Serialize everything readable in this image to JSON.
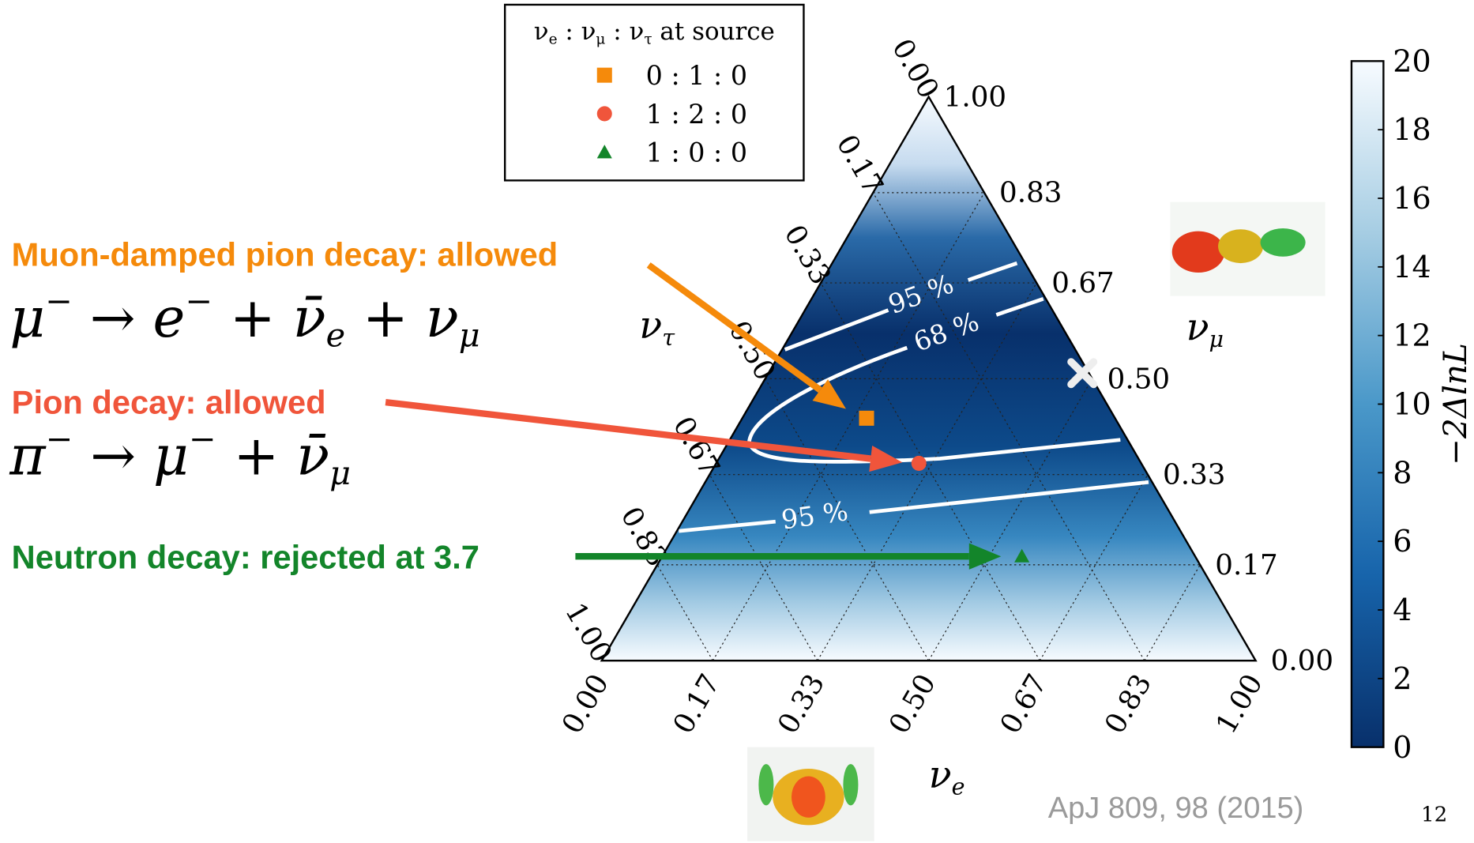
{
  "chart_data": {
    "type": "ternary",
    "axes": {
      "bottom": {
        "label": [
          {
            "text": "ν",
            "sub": "e"
          }
        ],
        "ticks": [
          {
            "value": 0,
            "label": "0.00"
          },
          {
            "value": 0.17,
            "label": "0.17"
          },
          {
            "value": 0.33,
            "label": "0.33"
          },
          {
            "value": 0.5,
            "label": "0.50"
          },
          {
            "value": 0.67,
            "label": "0.67"
          },
          {
            "value": 0.83,
            "label": "0.83"
          },
          {
            "value": 1,
            "label": "1.00"
          }
        ]
      },
      "right": {
        "label": [
          {
            "text": "ν",
            "sub": "μ"
          }
        ],
        "ticks": [
          {
            "value": 0,
            "label": "0.00"
          },
          {
            "value": 0.17,
            "label": "0.17"
          },
          {
            "value": 0.33,
            "label": "0.33"
          },
          {
            "value": 0.5,
            "label": "0.50"
          },
          {
            "value": 0.67,
            "label": "0.67"
          },
          {
            "value": 0.83,
            "label": "0.83"
          },
          {
            "value": 1,
            "label": "1.00"
          }
        ]
      },
      "left": {
        "label": [
          {
            "text": "ν",
            "sub": "τ"
          }
        ],
        "ticks": [
          {
            "value": 0,
            "label": "0.00"
          },
          {
            "value": 0.17,
            "label": "0.17"
          },
          {
            "value": 0.33,
            "label": "0.33"
          },
          {
            "value": 0.5,
            "label": "0.50"
          },
          {
            "value": 0.67,
            "label": "0.67"
          },
          {
            "value": 0.83,
            "label": "0.83"
          },
          {
            "value": 1,
            "label": "1.00"
          }
        ]
      }
    },
    "grid": true,
    "legend_title": [
      {
        "text": "ν",
        "sub": "e"
      },
      {
        "text": " : "
      },
      {
        "text": "ν",
        "sub": "μ"
      },
      {
        "text": " : "
      },
      {
        "text": "ν",
        "sub": "τ"
      },
      {
        "text": " at source"
      }
    ],
    "series": [
      {
        "name": "0 : 1 : 0",
        "color": "#f58a0b",
        "marker": "square",
        "values": [
          0.19,
          0.43,
          0.38
        ]
      },
      {
        "name": "1 : 2 : 0",
        "color": "#f0553b",
        "marker": "circle",
        "values": [
          0.31,
          0.35,
          0.34
        ]
      },
      {
        "name": "1 : 0 : 0",
        "color": "#13852a",
        "marker": "triangle",
        "values": [
          0.55,
          0.185,
          0.265
        ]
      }
    ],
    "best_fit": [
      0.48,
      0.51,
      0.01
    ],
    "contour_labels": [
      "95 %",
      "68 %",
      "95 %"
    ],
    "colorbar": {
      "label": "−2ΔlnL",
      "lim": [
        0,
        20
      ],
      "ticks": [
        0,
        2,
        4,
        6,
        8,
        10,
        12,
        14,
        16,
        18,
        20
      ]
    }
  },
  "annotations": [
    {
      "text": "Muon-damped pion decay: allowed",
      "color": "#f58a0b",
      "equation": [
        {
          "text": "μ",
          "sup": "−"
        },
        {
          "text": " → "
        },
        {
          "text": "e",
          "sup": "−"
        },
        {
          "text": " + "
        },
        {
          "text": "ν̄",
          "sub": "e"
        },
        {
          "text": " + "
        },
        {
          "text": "ν",
          "sub": "μ"
        }
      ]
    },
    {
      "text": "Pion decay: allowed",
      "color": "#f0553b",
      "equation": [
        {
          "text": "π",
          "sup": "−"
        },
        {
          "text": " → "
        },
        {
          "text": "μ",
          "sup": "−"
        },
        {
          "text": " + "
        },
        {
          "text": "ν̄",
          "sub": "μ"
        }
      ]
    },
    {
      "text": "Neutron decay: rejected at 3.7",
      "color": "#13852a"
    }
  ],
  "footer": {
    "reference": "ApJ 809, 98 (2015)",
    "page": "12"
  }
}
